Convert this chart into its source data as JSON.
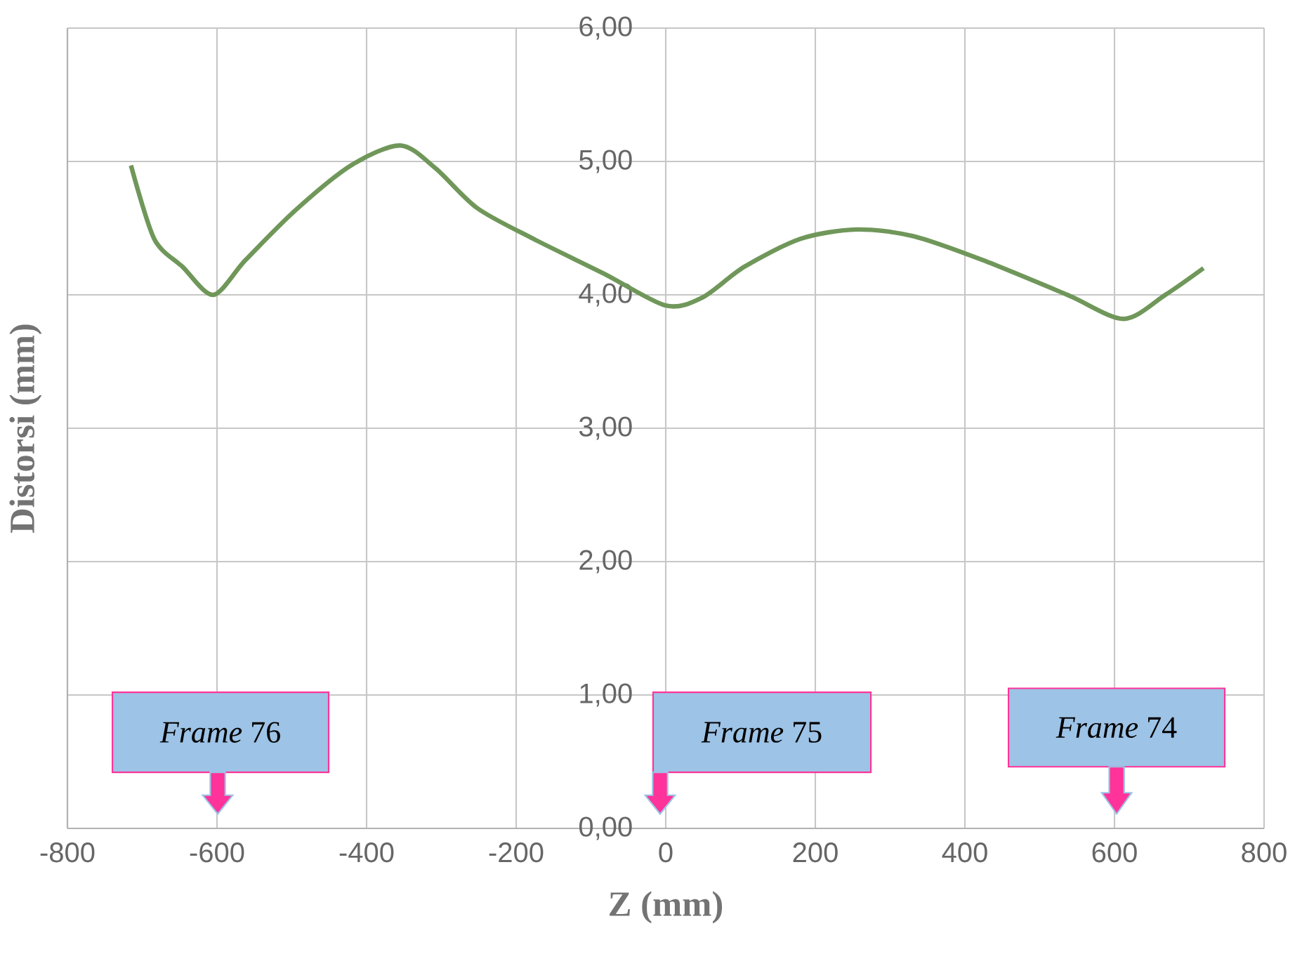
{
  "chart_data": {
    "type": "line",
    "xlabel": "Z (mm)",
    "ylabel": "Distorsi (mm)",
    "xlim": [
      -800,
      800
    ],
    "xticks": [
      -800,
      -600,
      -400,
      -200,
      0,
      200,
      400,
      600,
      800
    ],
    "ylim": [
      0,
      6
    ],
    "yticks": [
      {
        "value": 0,
        "label": "0,00"
      },
      {
        "value": 1,
        "label": "1,00"
      },
      {
        "value": 2,
        "label": "2,00"
      },
      {
        "value": 3,
        "label": "3,00"
      },
      {
        "value": 4,
        "label": "4,00"
      },
      {
        "value": 5,
        "label": "5,00"
      },
      {
        "value": 6,
        "label": "6,00"
      }
    ],
    "grid": true,
    "marker": "none",
    "line_style": "solid",
    "series": [
      {
        "color": "#70975a",
        "x": [
          -715,
          -684,
          -646,
          -605,
          -562,
          -496,
          -421,
          -355,
          -308,
          -252,
          -177,
          -83,
          0,
          49,
          105,
          180,
          255,
          331,
          424,
          537,
          612,
          668,
          719
        ],
        "values": [
          4.97,
          4.42,
          4.21,
          4.0,
          4.26,
          4.63,
          4.97,
          5.12,
          4.95,
          4.65,
          4.42,
          4.16,
          3.92,
          3.98,
          4.21,
          4.42,
          4.49,
          4.44,
          4.26,
          4.0,
          3.82,
          4.0,
          4.2
        ]
      }
    ],
    "annotations": [
      "*Frame* 76",
      "*Frame* 75",
      "*Frame* 74"
    ]
  }
}
